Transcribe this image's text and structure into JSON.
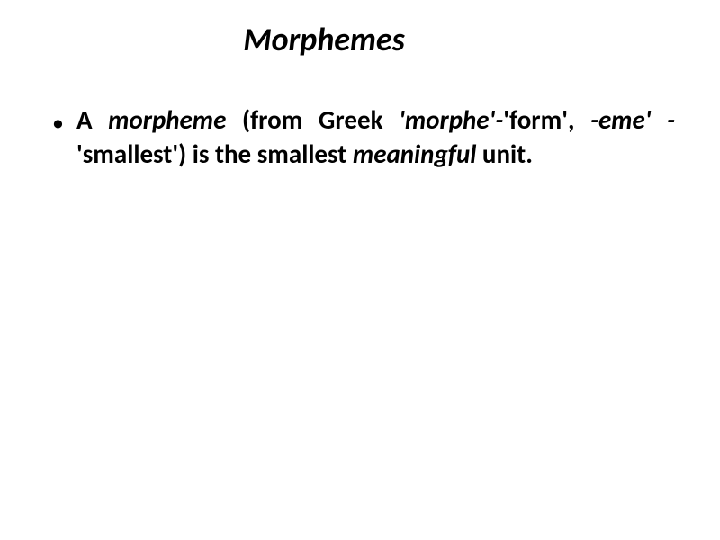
{
  "slide": {
    "title": "Morphemes",
    "title_fontsize": 36,
    "title_color": "#000000",
    "title_font_weight": "bold",
    "title_font_style": "italic",
    "background_color": "#ffffff",
    "body_fontsize": 29,
    "body_color": "#000000",
    "bullet_items": [
      {
        "segments": [
          {
            "text": "A ",
            "bold": true,
            "italic": false
          },
          {
            "text": "morpheme",
            "bold": true,
            "italic": true
          },
          {
            "text": " (from Greek ",
            "bold": true,
            "italic": false
          },
          {
            "text": "'morphe'-",
            "bold": true,
            "italic": true
          },
          {
            "text": "'form', ",
            "bold": true,
            "italic": false
          },
          {
            "text": " -eme' -",
            "bold": true,
            "italic": true
          },
          {
            "text": "'smallest') is the smallest ",
            "bold": true,
            "italic": false
          },
          {
            "text": "meaningful",
            "bold": true,
            "italic": true
          },
          {
            "text": " unit.",
            "bold": true,
            "italic": false
          }
        ]
      }
    ]
  }
}
